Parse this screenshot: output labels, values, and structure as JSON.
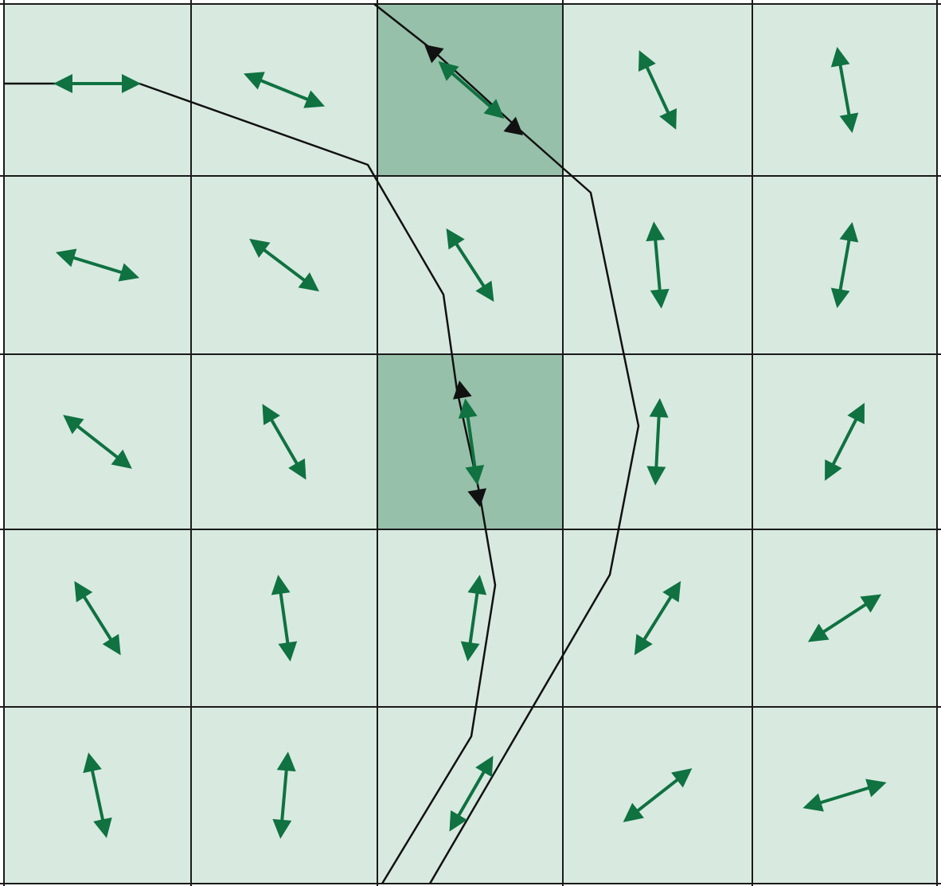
{
  "diagram": {
    "grid": {
      "rows": 5,
      "cols": 5
    },
    "colors": {
      "cell_fill": "#d8e9e0",
      "highlight_fill": "#96c0aa",
      "grid_line": "#1a1a1a",
      "arrow": "#0f7240",
      "path_line": "#111111"
    },
    "highlighted_cells": [
      {
        "row": 0,
        "col": 2
      },
      {
        "row": 2,
        "col": 2
      }
    ],
    "arrow_angles_deg": [
      [
        0,
        22,
        41,
        65,
        80
      ],
      [
        17,
        37,
        57,
        85,
        100
      ],
      [
        38,
        60,
        82,
        93,
        117
      ],
      [
        58,
        82,
        98,
        122,
        147
      ],
      [
        78,
        95,
        120,
        142,
        163
      ]
    ],
    "icon": "double-headed-arrow-icon"
  }
}
